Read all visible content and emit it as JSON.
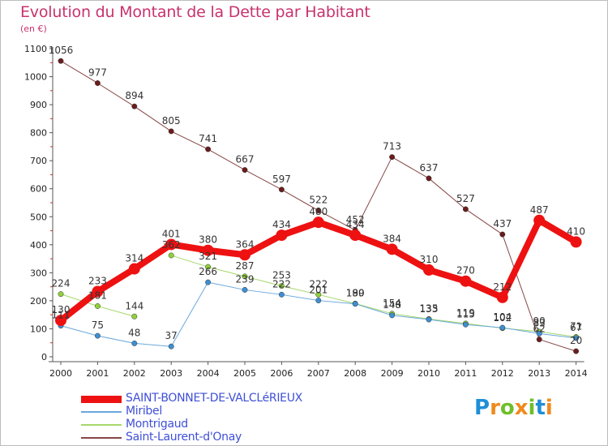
{
  "header": {
    "title": "Evolution du Montant de la Dette par Habitant",
    "subtitle": "(en €)"
  },
  "logo": {
    "text": "Proxiti",
    "colors": [
      "#1f8fd6",
      "#f08a1c",
      "#6fbf2a",
      "#f08a1c",
      "#6fbf2a",
      "#1f8fd6",
      "#f08a1c"
    ]
  },
  "chart_data": {
    "type": "line",
    "x": [
      "2000",
      "2001",
      "2002",
      "2003",
      "2004",
      "2005",
      "2006",
      "2007",
      "2008",
      "2009",
      "2010",
      "2011",
      "2012",
      "2013",
      "2014"
    ],
    "ylim": [
      0,
      1100
    ],
    "yticks": [
      0,
      100,
      200,
      300,
      400,
      500,
      600,
      700,
      800,
      900,
      1000,
      1100
    ],
    "grid": false,
    "legend_position": "bottom-left",
    "series": [
      {
        "name": "SAINT-BONNET-DE-VALCLéRIEUX",
        "color": "#ee1111",
        "stroke": "#ee1111",
        "width": 8,
        "values": [
          130,
          233,
          314,
          401,
          380,
          364,
          434,
          480,
          434,
          384,
          310,
          270,
          212,
          487,
          410
        ],
        "labels": [
          "130",
          "233",
          "314",
          "401",
          "380",
          "364",
          "434",
          "480",
          "434",
          "384",
          "310",
          "270",
          "212",
          "487",
          "410"
        ]
      },
      {
        "name": "Miribel",
        "color": "#3d8fd0",
        "stroke": "#6aa8dc",
        "width": 1,
        "values": [
          111,
          75,
          48,
          37,
          266,
          239,
          222,
          201,
          189,
          148,
          133,
          115,
          104,
          83,
          67
        ],
        "labels": [
          "111",
          "75",
          "48",
          "37",
          "266",
          "239",
          "222",
          "201",
          "189",
          "148",
          "133",
          "115",
          "104",
          "83",
          "67"
        ]
      },
      {
        "name": "Montrigaud",
        "color": "#8fd13a",
        "stroke": "#a6d86b",
        "width": 1,
        "values": [
          224,
          181,
          144,
          362,
          321,
          287,
          253,
          222,
          190,
          154,
          135,
          119,
          102,
          90,
          71
        ],
        "labels": [
          "224",
          "181",
          "144",
          "362",
          "321",
          "287",
          "253",
          "222",
          "190",
          "154",
          "135",
          "119",
          "102",
          "90",
          "71"
        ],
        "breaks": [
          3
        ]
      },
      {
        "name": "Saint-Laurent-d'Onay",
        "color": "#6a1c1c",
        "stroke": "#874646",
        "width": 1,
        "values": [
          1056,
          977,
          894,
          805,
          741,
          667,
          597,
          522,
          452,
          713,
          637,
          527,
          437,
          62,
          20
        ],
        "labels": [
          "1056",
          "977",
          "894",
          "805",
          "741",
          "667",
          "597",
          "522",
          "452",
          "713",
          "637",
          "527",
          "437",
          "62",
          "20"
        ]
      }
    ]
  }
}
